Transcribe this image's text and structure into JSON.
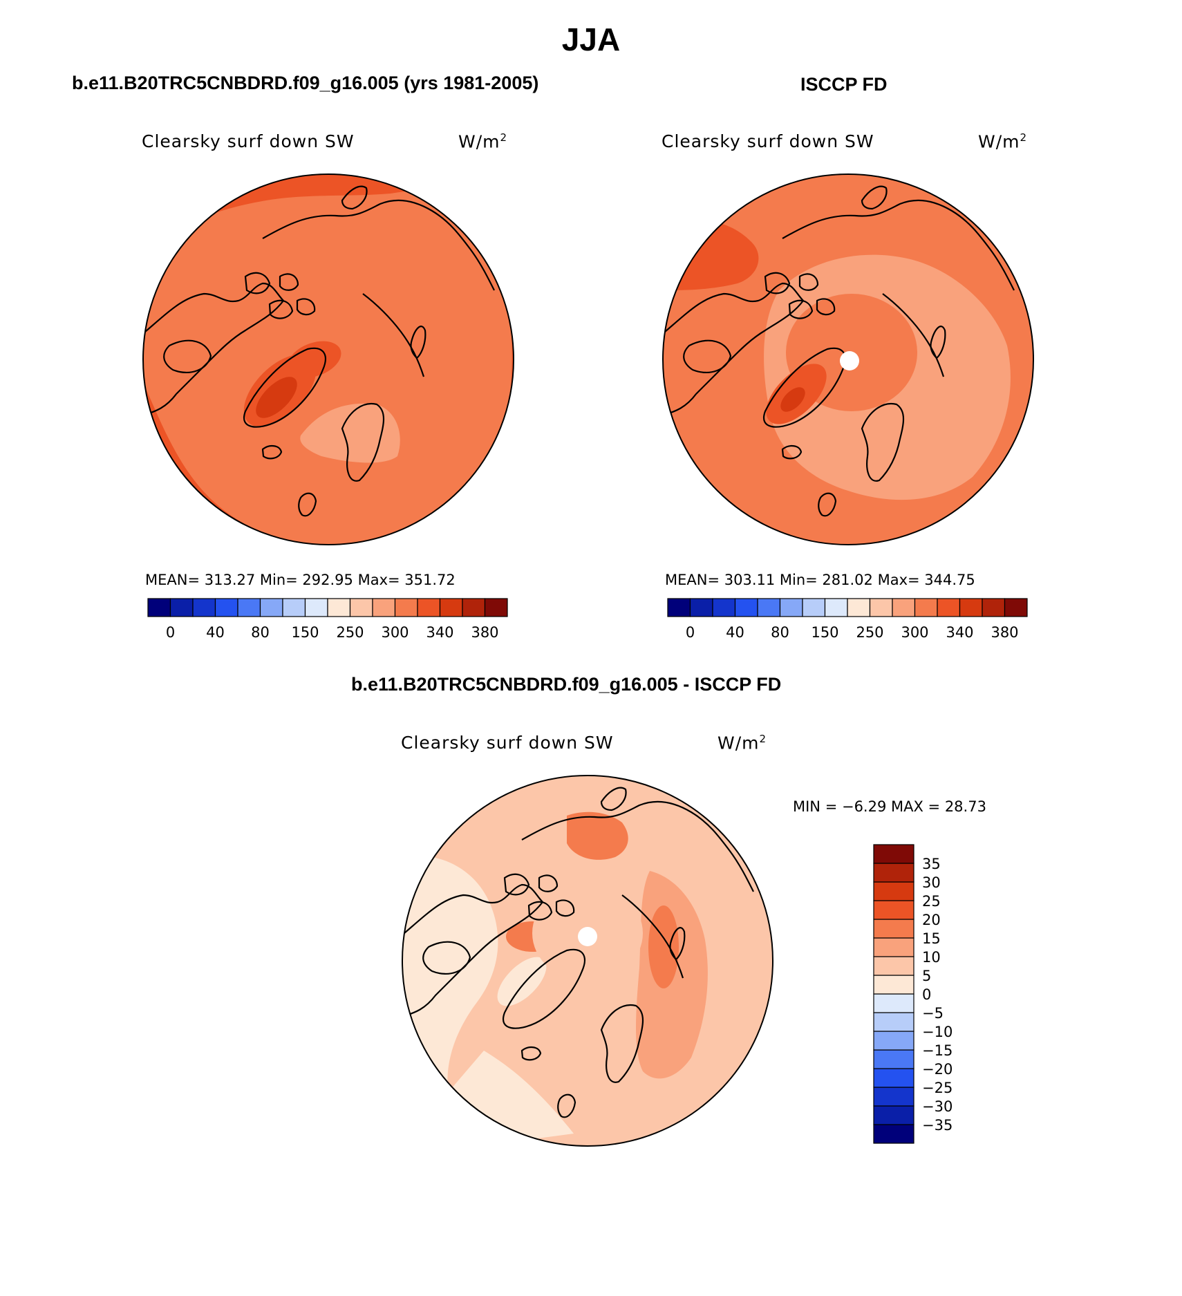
{
  "title": "JJA",
  "panels": [
    {
      "header": "b.e11.B20TRC5CNBDRD.f09_g16.005 (yrs 1981-2005)",
      "variable": "Clearsky surf down SW",
      "units_base": "W/m",
      "units_exp": "2",
      "stats": "MEAN= 313.27   Min= 292.95   Max= 351.72"
    },
    {
      "header": "ISCCP FD",
      "variable": "Clearsky surf down SW",
      "units_base": "W/m",
      "units_exp": "2",
      "stats": "MEAN= 303.11   Min= 281.02   Max= 344.75"
    },
    {
      "header": "b.e11.B20TRC5CNBDRD.f09_g16.005 - ISCCP FD",
      "variable": "Clearsky surf down SW",
      "units_base": "W/m",
      "units_exp": "2",
      "stats": "MIN =   −6.29  MAX =   28.73"
    }
  ],
  "colorbar_abs": {
    "colors": [
      "#00007a",
      "#0a1fa8",
      "#1435cc",
      "#2452f0",
      "#4a78f5",
      "#86a8f7",
      "#b7cdf9",
      "#dde9fb",
      "#fde8d6",
      "#fcc6a9",
      "#f9a27c",
      "#f47b4d",
      "#ec5426",
      "#d63a10",
      "#b0230a",
      "#7f0a06"
    ],
    "labels": [
      "0",
      "40",
      "80",
      "150",
      "250",
      "300",
      "340",
      "380"
    ]
  },
  "colorbar_diff": {
    "colors": [
      "#00007a",
      "#0a1fa8",
      "#1435cc",
      "#2452f0",
      "#4a78f5",
      "#86a8f7",
      "#b7cdf9",
      "#dde9fb",
      "#fde8d6",
      "#fcc6a9",
      "#f9a27c",
      "#f47b4d",
      "#ec5426",
      "#d63a10",
      "#b0230a",
      "#7f0a06"
    ],
    "labels": [
      "35",
      "30",
      "25",
      "20",
      "15",
      "10",
      "5",
      "0",
      "−5",
      "−10",
      "−15",
      "−20",
      "−25",
      "−30",
      "−35"
    ]
  },
  "map_colors": {
    "abs_base": "#f47b4d",
    "abs_high": "#ec5426",
    "abs_max": "#d63a10",
    "abs_low": "#f9a27c",
    "diff_base": "#fcc6a9",
    "diff_mid": "#f9a27c",
    "diff_low": "#fde8d6",
    "diff_high": "#f47b4d"
  }
}
